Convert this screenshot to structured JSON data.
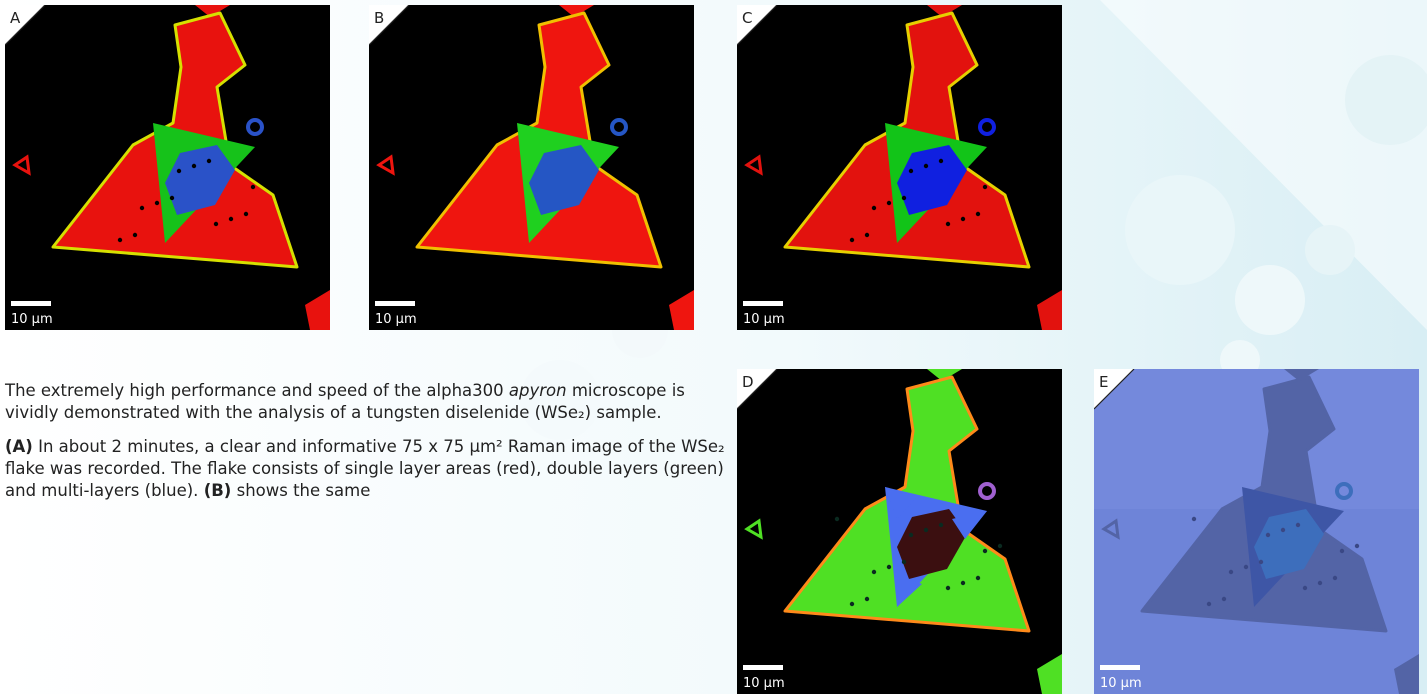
{
  "panels": [
    {
      "label": "A",
      "scale": "10 µm"
    },
    {
      "label": "B",
      "scale": "10 µm"
    },
    {
      "label": "C",
      "scale": "10 µm"
    },
    {
      "label": "D",
      "scale": "10 µm"
    },
    {
      "label": "E",
      "scale": "10 µm"
    }
  ],
  "text": {
    "paragraphs": [
      [
        {
          "text": "The extremely high performance and speed of the alpha300 "
        },
        {
          "text": "apyron",
          "style": "italic"
        },
        {
          "text": " microscope is vividly demonstrated with the analysis of a tungsten diselenide (WSe₂) sample."
        }
      ],
      [
        {
          "text": "(A)",
          "style": "bold"
        },
        {
          "text": " In about 2 minutes, a clear and informative 75 x 75 µm² Raman image of the WSe₂ flake was recorded. The flake consists of single layer areas (red), double layers (green) and multi-layers (blue). "
        },
        {
          "text": "(B)",
          "style": "bold"
        },
        {
          "text": " shows the same"
        }
      ]
    ]
  }
}
